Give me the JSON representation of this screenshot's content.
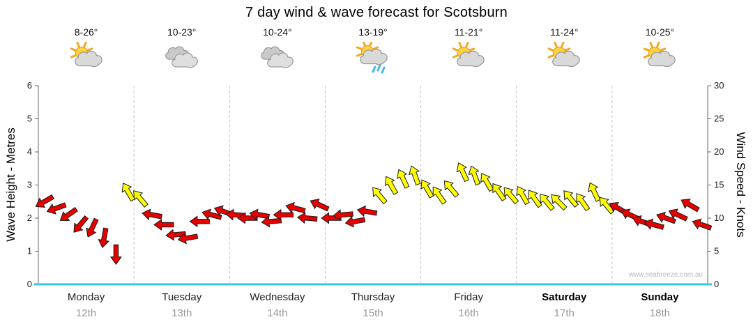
{
  "title": "7 day wind & wave forecast for Scotsburn",
  "watermark": "www.seabreeze.com.au",
  "axes": {
    "left_label": "Wave Height - Metres",
    "right_label": "Wind Speed - Knots"
  },
  "days": [
    {
      "name": "Monday",
      "date": "12th",
      "temp": "8-26°",
      "icon": "sun-cloud",
      "bold": false
    },
    {
      "name": "Tuesday",
      "date": "13th",
      "temp": "10-23°",
      "icon": "cloud",
      "bold": false
    },
    {
      "name": "Wednesday",
      "date": "14th",
      "temp": "10-24°",
      "icon": "cloud",
      "bold": false
    },
    {
      "name": "Thursday",
      "date": "15th",
      "temp": "13-19°",
      "icon": "sun-cloud-rain",
      "bold": false
    },
    {
      "name": "Friday",
      "date": "16th",
      "temp": "11-21°",
      "icon": "sun-cloud",
      "bold": false
    },
    {
      "name": "Saturday",
      "date": "17th",
      "temp": "11-24°",
      "icon": "sun-cloud",
      "bold": true
    },
    {
      "name": "Sunday",
      "date": "18th",
      "temp": "10-25°",
      "icon": "sun-cloud",
      "bold": true
    }
  ],
  "chart_data": {
    "type": "wind-arrow-series",
    "title": "7 day wind & wave forecast for Scotsburn",
    "categories": [
      "Monday 12th",
      "Tuesday 13th",
      "Wednesday 14th",
      "Thursday 15th",
      "Friday 16th",
      "Saturday 17th",
      "Sunday 18th"
    ],
    "points_per_day": 8,
    "x_resolution": "3-hourly",
    "wave_axis": {
      "label": "Wave Height - Metres",
      "min": 0,
      "max": 6,
      "tick": 1
    },
    "wind_axis": {
      "label": "Wind Speed - Knots",
      "min": 0,
      "max": 30,
      "tick": 5
    },
    "baseline_color": "#35c4f0",
    "grid": "dashed vertical day separators",
    "colors": {
      "red": "#e60000",
      "yellow": "#ffff00"
    },
    "dir_convention": "degrees clockwise from north (0 = arrow points up)",
    "points": [
      {
        "knots": 12.5,
        "dir": 240,
        "color": "red"
      },
      {
        "knots": 11.5,
        "dir": 250,
        "color": "red"
      },
      {
        "knots": 10.5,
        "dir": 235,
        "color": "red"
      },
      {
        "knots": 9,
        "dir": 220,
        "color": "red"
      },
      {
        "knots": 8.5,
        "dir": 205,
        "color": "red"
      },
      {
        "knots": 7,
        "dir": 190,
        "color": "red"
      },
      {
        "knots": 4.5,
        "dir": 180,
        "color": "red"
      },
      {
        "knots": 14,
        "dir": 330,
        "color": "yellow"
      },
      {
        "knots": 13,
        "dir": 320,
        "color": "yellow"
      },
      {
        "knots": 10.5,
        "dir": 280,
        "color": "red"
      },
      {
        "knots": 9,
        "dir": 270,
        "color": "red"
      },
      {
        "knots": 7.5,
        "dir": 265,
        "color": "red"
      },
      {
        "knots": 7,
        "dir": 260,
        "color": "red"
      },
      {
        "knots": 9.5,
        "dir": 270,
        "color": "red"
      },
      {
        "knots": 10.5,
        "dir": 285,
        "color": "red"
      },
      {
        "knots": 11,
        "dir": 290,
        "color": "red"
      },
      {
        "knots": 10.5,
        "dir": 275,
        "color": "red"
      },
      {
        "knots": 10,
        "dir": 270,
        "color": "red"
      },
      {
        "knots": 10.5,
        "dir": 280,
        "color": "red"
      },
      {
        "knots": 9.5,
        "dir": 265,
        "color": "red"
      },
      {
        "knots": 10.5,
        "dir": 270,
        "color": "red"
      },
      {
        "knots": 11.5,
        "dir": 285,
        "color": "red"
      },
      {
        "knots": 10,
        "dir": 275,
        "color": "red"
      },
      {
        "knots": 12,
        "dir": 295,
        "color": "red"
      },
      {
        "knots": 10,
        "dir": 270,
        "color": "red"
      },
      {
        "knots": 10.5,
        "dir": 265,
        "color": "red"
      },
      {
        "knots": 9.5,
        "dir": 260,
        "color": "red"
      },
      {
        "knots": 11,
        "dir": 280,
        "color": "red"
      },
      {
        "knots": 13.5,
        "dir": 320,
        "color": "yellow"
      },
      {
        "knots": 15,
        "dir": 330,
        "color": "yellow"
      },
      {
        "knots": 16,
        "dir": 335,
        "color": "yellow"
      },
      {
        "knots": 16.5,
        "dir": 340,
        "color": "yellow"
      },
      {
        "knots": 14.5,
        "dir": 330,
        "color": "yellow"
      },
      {
        "knots": 13.5,
        "dir": 325,
        "color": "yellow"
      },
      {
        "knots": 14.5,
        "dir": 320,
        "color": "yellow"
      },
      {
        "knots": 17,
        "dir": 335,
        "color": "yellow"
      },
      {
        "knots": 16.5,
        "dir": 340,
        "color": "yellow"
      },
      {
        "knots": 15.5,
        "dir": 330,
        "color": "yellow"
      },
      {
        "knots": 14,
        "dir": 325,
        "color": "yellow"
      },
      {
        "knots": 13.5,
        "dir": 320,
        "color": "yellow"
      },
      {
        "knots": 13.5,
        "dir": 330,
        "color": "yellow"
      },
      {
        "knots": 13,
        "dir": 325,
        "color": "yellow"
      },
      {
        "knots": 12.5,
        "dir": 320,
        "color": "yellow"
      },
      {
        "knots": 12.5,
        "dir": 315,
        "color": "yellow"
      },
      {
        "knots": 13,
        "dir": 320,
        "color": "yellow"
      },
      {
        "knots": 12.5,
        "dir": 325,
        "color": "yellow"
      },
      {
        "knots": 14,
        "dir": 335,
        "color": "yellow"
      },
      {
        "knots": 12,
        "dir": 320,
        "color": "yellow"
      },
      {
        "knots": 11.5,
        "dir": 300,
        "color": "red"
      },
      {
        "knots": 10.5,
        "dir": 295,
        "color": "red"
      },
      {
        "knots": 9.5,
        "dir": 290,
        "color": "red"
      },
      {
        "knots": 9,
        "dir": 285,
        "color": "red"
      },
      {
        "knots": 10,
        "dir": 290,
        "color": "red"
      },
      {
        "knots": 10.5,
        "dir": 295,
        "color": "red"
      },
      {
        "knots": 12,
        "dir": 300,
        "color": "red"
      },
      {
        "knots": 9,
        "dir": 290,
        "color": "red"
      }
    ]
  }
}
